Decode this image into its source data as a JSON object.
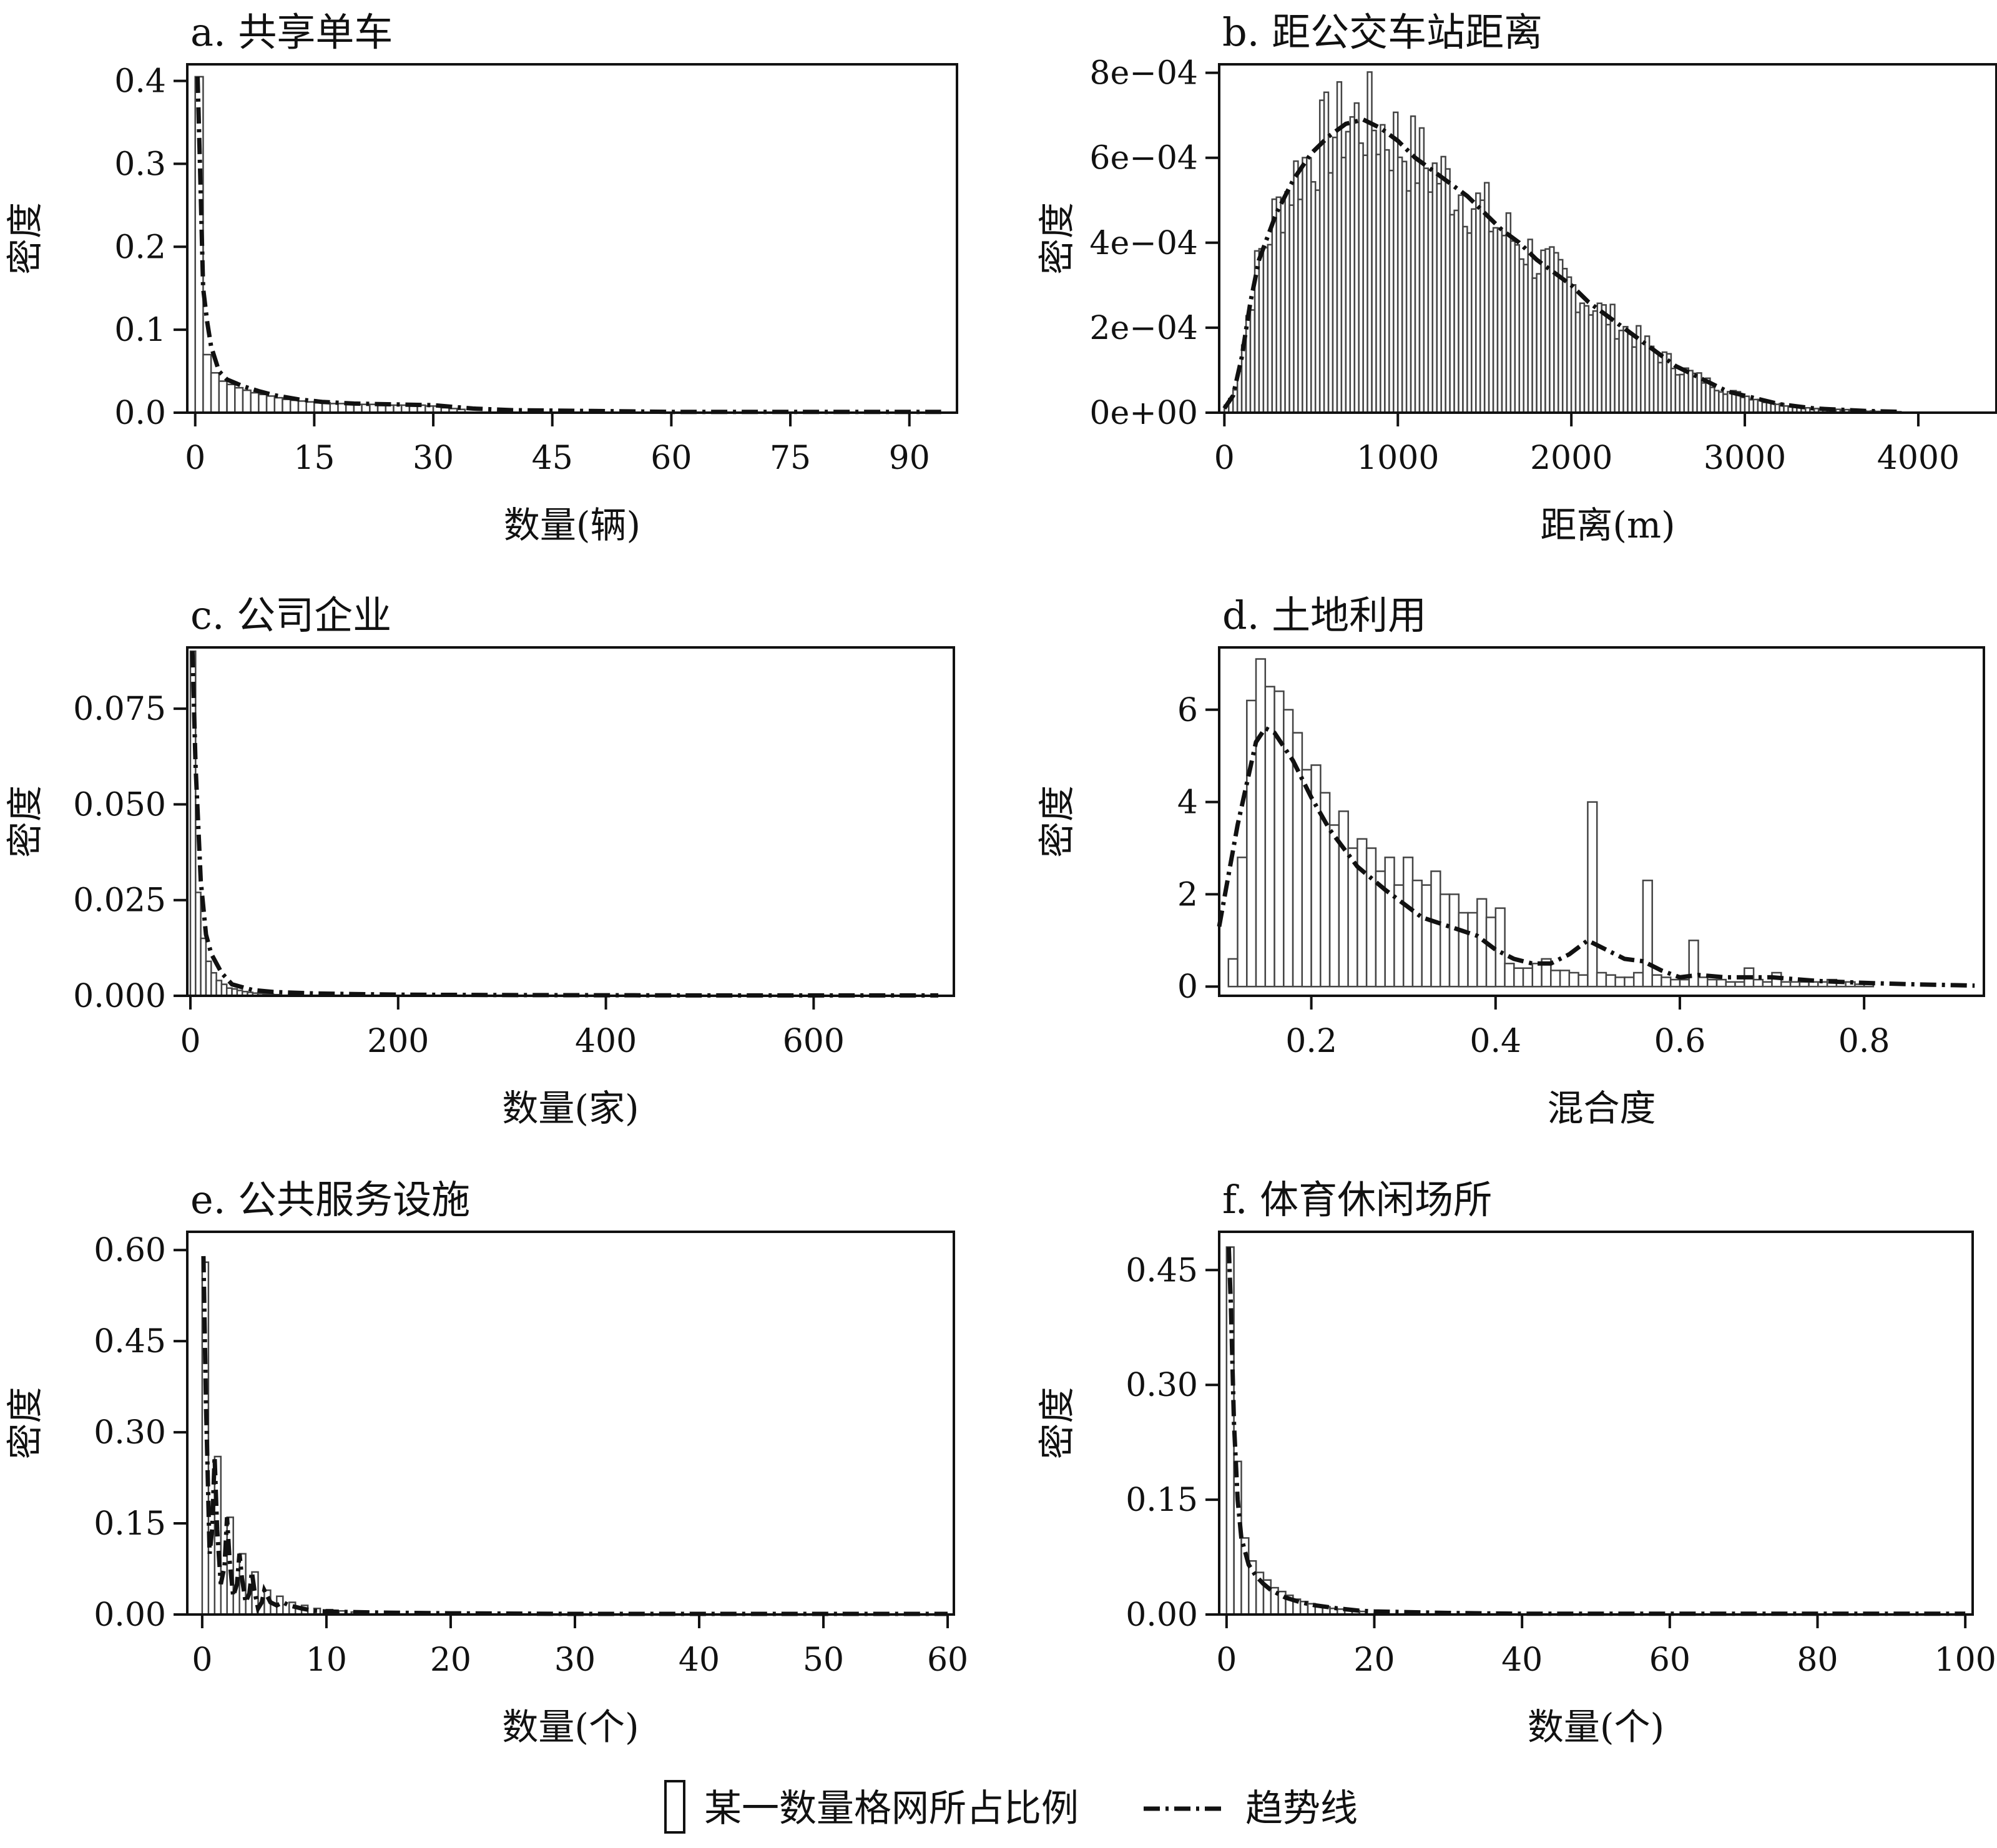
{
  "chart_data": [
    {
      "id": "a",
      "type": "bar",
      "title": "a. 共享单车",
      "xlabel": "数量(辆)",
      "ylabel": "密度",
      "xlim": [
        -1,
        96
      ],
      "ylim": [
        0,
        0.42
      ],
      "xticks": [
        0,
        15,
        30,
        45,
        60,
        75,
        90
      ],
      "xtick_labels": [
        "0",
        "15",
        "30",
        "45",
        "60",
        "75",
        "90"
      ],
      "yticks": [
        0,
        0.1,
        0.2,
        0.3,
        0.4
      ],
      "ytick_labels": [
        "0.0",
        "0.1",
        "0.2",
        "0.3",
        "0.4"
      ],
      "bin_width": 1,
      "bins_x": [
        0,
        1,
        2,
        3,
        4,
        5,
        6,
        7,
        8,
        9,
        10,
        11,
        12,
        13,
        14,
        15,
        16,
        17,
        18,
        19,
        20,
        21,
        22,
        23,
        24,
        25,
        26,
        27,
        28,
        29,
        30,
        31,
        32,
        33
      ],
      "bins_y": [
        0.405,
        0.07,
        0.048,
        0.038,
        0.034,
        0.03,
        0.027,
        0.024,
        0.022,
        0.02,
        0.018,
        0.016,
        0.015,
        0.014,
        0.013,
        0.012,
        0.012,
        0.011,
        0.011,
        0.01,
        0.01,
        0.01,
        0.01,
        0.009,
        0.009,
        0.009,
        0.009,
        0.009,
        0.009,
        0.008,
        0.008,
        0.006,
        0.005,
        0.004
      ],
      "trend_x": [
        0.3,
        0.6,
        1,
        1.5,
        2,
        3,
        4,
        6,
        8,
        10,
        13,
        16,
        20,
        25,
        30,
        35,
        40,
        50,
        60,
        70,
        80,
        90,
        94
      ],
      "trend_y": [
        0.405,
        0.3,
        0.15,
        0.11,
        0.08,
        0.05,
        0.04,
        0.032,
        0.026,
        0.021,
        0.016,
        0.013,
        0.011,
        0.01,
        0.009,
        0.005,
        0.003,
        0.002,
        0.001,
        0.001,
        0.001,
        0.001,
        0.001
      ]
    },
    {
      "id": "b",
      "type": "bar",
      "title": "b. 距公交车站距离",
      "xlabel": "距离(m)",
      "ylabel": "密度",
      "xlim": [
        -30,
        4450
      ],
      "ylim": [
        0,
        0.00082
      ],
      "xticks": [
        0,
        1000,
        2000,
        3000,
        4000
      ],
      "xtick_labels": [
        "0",
        "1000",
        "2000",
        "3000",
        "4000"
      ],
      "yticks": [
        0,
        0.0002,
        0.0004,
        0.0006,
        0.0008
      ],
      "ytick_labels": [
        "0e+00",
        "2e−04",
        "4e−04",
        "6e−04",
        "8e−04"
      ],
      "bin_width": 25,
      "curve_peak_x": 800,
      "curve_peak_y": 0.00069,
      "curve_max_x": 3900,
      "trend_x": [
        0,
        50,
        100,
        150,
        200,
        300,
        400,
        500,
        600,
        700,
        800,
        900,
        1000,
        1100,
        1200,
        1300,
        1400,
        1500,
        1600,
        1700,
        1800,
        1900,
        2000,
        2100,
        2200,
        2300,
        2400,
        2500,
        2600,
        2700,
        2800,
        2900,
        3000,
        3100,
        3200,
        3300,
        3400,
        3500,
        3600,
        3700,
        3800,
        3900
      ],
      "trend_y": [
        1e-05,
        4e-05,
        0.00013,
        0.00026,
        0.00036,
        0.00047,
        0.00055,
        0.00061,
        0.00065,
        0.00068,
        0.00069,
        0.00067,
        0.00064,
        0.0006,
        0.00057,
        0.00054,
        0.00051,
        0.00047,
        0.00043,
        0.0004,
        0.00036,
        0.00033,
        0.0003,
        0.00026,
        0.00023,
        0.0002,
        0.00017,
        0.00014,
        0.00011,
        9e-05,
        7e-05,
        5e-05,
        4e-05,
        3e-05,
        2e-05,
        1.5e-05,
        1e-05,
        8e-06,
        6e-06,
        4e-06,
        3e-06,
        2e-06
      ]
    },
    {
      "id": "c",
      "type": "bar",
      "title": "c. 公司企业",
      "xlabel": "数量(家)",
      "ylabel": "密度",
      "xlim": [
        -3,
        735
      ],
      "ylim": [
        0,
        0.091
      ],
      "xticks": [
        0,
        200,
        400,
        600
      ],
      "xtick_labels": [
        "0",
        "200",
        "400",
        "600"
      ],
      "yticks": [
        0,
        0.025,
        0.05,
        0.075
      ],
      "ytick_labels": [
        "0.000",
        "0.025",
        "0.050",
        "0.075"
      ],
      "bin_width": 5,
      "bins_x": [
        0,
        5,
        10,
        15,
        20,
        25,
        30,
        35,
        40,
        45,
        50,
        55,
        60,
        65,
        70,
        75,
        80
      ],
      "bins_y": [
        0.09,
        0.027,
        0.015,
        0.009,
        0.006,
        0.004,
        0.003,
        0.002,
        0.0018,
        0.0014,
        0.0011,
        0.0009,
        0.0007,
        0.0006,
        0.0005,
        0.0004,
        0.0003
      ],
      "trend_x": [
        2,
        5,
        10,
        15,
        20,
        30,
        40,
        60,
        80,
        120,
        200,
        300,
        400,
        500,
        600,
        720
      ],
      "trend_y": [
        0.09,
        0.06,
        0.03,
        0.016,
        0.011,
        0.006,
        0.003,
        0.0015,
        0.001,
        0.0006,
        0.0003,
        0.0002,
        0.00015,
        0.0001,
        0.0001,
        0.0001
      ]
    },
    {
      "id": "d",
      "type": "bar",
      "title": "d. 土地利用",
      "xlabel": "混合度",
      "ylabel": "密度",
      "xlim": [
        0.1,
        0.93
      ],
      "ylim": [
        -0.2,
        7.35
      ],
      "xticks": [
        0.2,
        0.4,
        0.6,
        0.8
      ],
      "xtick_labels": [
        "0.2",
        "0.4",
        "0.6",
        "0.8"
      ],
      "yticks": [
        0,
        2,
        4,
        6
      ],
      "ytick_labels": [
        "0",
        "2",
        "4",
        "6"
      ],
      "bin_width": 0.01,
      "bins_x": [
        0.11,
        0.12,
        0.13,
        0.14,
        0.15,
        0.16,
        0.17,
        0.18,
        0.19,
        0.2,
        0.21,
        0.22,
        0.23,
        0.24,
        0.25,
        0.26,
        0.27,
        0.28,
        0.29,
        0.3,
        0.31,
        0.32,
        0.33,
        0.34,
        0.35,
        0.36,
        0.37,
        0.38,
        0.39,
        0.4,
        0.41,
        0.42,
        0.43,
        0.44,
        0.45,
        0.46,
        0.47,
        0.48,
        0.49,
        0.5,
        0.51,
        0.52,
        0.53,
        0.54,
        0.55,
        0.56,
        0.57,
        0.58,
        0.59,
        0.6,
        0.61,
        0.62,
        0.63,
        0.64,
        0.65,
        0.66,
        0.67,
        0.68,
        0.69,
        0.7,
        0.71,
        0.72,
        0.73,
        0.74,
        0.75,
        0.76,
        0.77,
        0.78,
        0.79,
        0.8
      ],
      "bins_y": [
        0.6,
        2.8,
        6.2,
        7.1,
        6.5,
        6.4,
        6.0,
        5.5,
        4.7,
        4.8,
        4.2,
        3.5,
        3.8,
        3.0,
        3.2,
        3.0,
        2.5,
        2.8,
        2.2,
        2.8,
        2.3,
        2.2,
        2.5,
        2.0,
        2.0,
        1.6,
        1.6,
        1.9,
        1.5,
        1.7,
        0.5,
        0.4,
        0.4,
        0.5,
        0.6,
        0.35,
        0.35,
        0.3,
        0.25,
        4.0,
        0.3,
        0.25,
        0.2,
        0.2,
        0.3,
        2.3,
        0.25,
        0.2,
        0.15,
        0.15,
        1.0,
        0.2,
        0.15,
        0.15,
        0.1,
        0.1,
        0.4,
        0.15,
        0.1,
        0.3,
        0.1,
        0.1,
        0.1,
        0.1,
        0.1,
        0.15,
        0.1,
        0.1,
        0.05,
        0.05
      ],
      "trend_x": [
        0.1,
        0.12,
        0.14,
        0.15,
        0.16,
        0.18,
        0.2,
        0.22,
        0.25,
        0.28,
        0.3,
        0.32,
        0.35,
        0.38,
        0.4,
        0.42,
        0.44,
        0.46,
        0.48,
        0.5,
        0.52,
        0.54,
        0.56,
        0.58,
        0.6,
        0.62,
        0.65,
        0.7,
        0.75,
        0.8,
        0.85,
        0.9,
        0.92
      ],
      "trend_y": [
        1.3,
        3.5,
        5.3,
        5.6,
        5.5,
        4.9,
        4.1,
        3.4,
        2.6,
        2.1,
        1.8,
        1.5,
        1.3,
        1.1,
        0.8,
        0.6,
        0.5,
        0.5,
        0.7,
        1.0,
        0.8,
        0.6,
        0.55,
        0.35,
        0.2,
        0.25,
        0.2,
        0.2,
        0.12,
        0.08,
        0.05,
        0.03,
        0.02
      ]
    },
    {
      "id": "e",
      "type": "bar",
      "title": "e. 公共服务设施",
      "xlabel": "数量(个)",
      "ylabel": "密度",
      "xlim": [
        -1.2,
        60.5
      ],
      "ylim": [
        0,
        0.63
      ],
      "xticks": [
        0,
        10,
        20,
        30,
        40,
        50,
        60
      ],
      "xtick_labels": [
        "0",
        "10",
        "20",
        "30",
        "40",
        "50",
        "60"
      ],
      "yticks": [
        0,
        0.15,
        0.3,
        0.45,
        0.6
      ],
      "ytick_labels": [
        "0.00",
        "0.15",
        "0.30",
        "0.45",
        "0.60"
      ],
      "bin_width": 0.5,
      "bins_x": [
        0,
        0.5,
        1,
        1.5,
        2,
        2.5,
        3,
        3.5,
        4,
        4.5,
        5,
        5.5,
        6,
        6.5,
        7,
        7.5,
        8,
        8.5,
        9,
        9.5,
        10,
        10.5,
        11,
        11.5,
        12
      ],
      "bins_y": [
        0.58,
        0.0,
        0.26,
        0.0,
        0.16,
        0.0,
        0.1,
        0.0,
        0.07,
        0.0,
        0.04,
        0.0,
        0.03,
        0.0,
        0.02,
        0.0,
        0.015,
        0.0,
        0.01,
        0.0,
        0.008,
        0.0,
        0.006,
        0.0,
        0.004
      ],
      "trend_x": [
        0.1,
        0.3,
        0.6,
        0.8,
        1,
        1.2,
        1.5,
        1.8,
        2,
        2.2,
        2.5,
        2.8,
        3,
        3.2,
        3.5,
        3.8,
        4,
        4.2,
        4.5,
        4.8,
        5,
        5.5,
        6,
        6.5,
        7,
        8,
        9,
        10,
        12,
        15,
        20,
        30,
        40,
        50,
        60
      ],
      "trend_y": [
        0.59,
        0.35,
        0.1,
        0.14,
        0.26,
        0.14,
        0.05,
        0.08,
        0.16,
        0.09,
        0.03,
        0.05,
        0.1,
        0.06,
        0.02,
        0.035,
        0.07,
        0.04,
        0.01,
        0.02,
        0.04,
        0.02,
        0.015,
        0.02,
        0.015,
        0.01,
        0.006,
        0.005,
        0.004,
        0.003,
        0.002,
        0.001,
        0.001,
        0.001,
        0.001
      ]
    },
    {
      "id": "f",
      "type": "bar",
      "title": "f. 体育休闲场所",
      "xlabel": "数量(个)",
      "ylabel": "密度",
      "xlim": [
        -1,
        101
      ],
      "ylim": [
        0,
        0.5
      ],
      "xticks": [
        0,
        20,
        40,
        60,
        80,
        100
      ],
      "xtick_labels": [
        "0",
        "20",
        "40",
        "60",
        "80",
        "100"
      ],
      "yticks": [
        0,
        0.15,
        0.3,
        0.45
      ],
      "ytick_labels": [
        "0.00",
        "0.15",
        "0.30",
        "0.45"
      ],
      "bin_width": 1,
      "bins_x": [
        0,
        1,
        2,
        3,
        4,
        5,
        6,
        7,
        8,
        9,
        10,
        11,
        12,
        13,
        14,
        15,
        16,
        17,
        18
      ],
      "bins_y": [
        0.48,
        0.2,
        0.1,
        0.07,
        0.055,
        0.045,
        0.035,
        0.03,
        0.025,
        0.02,
        0.017,
        0.014,
        0.012,
        0.01,
        0.008,
        0.007,
        0.006,
        0.005,
        0.004
      ],
      "trend_x": [
        0.3,
        0.6,
        1,
        1.5,
        2,
        3,
        4,
        5,
        6,
        8,
        10,
        12,
        15,
        18,
        20,
        30,
        40,
        60,
        80,
        100
      ],
      "trend_y": [
        0.48,
        0.4,
        0.25,
        0.15,
        0.1,
        0.065,
        0.05,
        0.04,
        0.032,
        0.022,
        0.016,
        0.012,
        0.008,
        0.005,
        0.004,
        0.002,
        0.001,
        0.001,
        0.001,
        0.001
      ]
    }
  ],
  "legend": {
    "bar_label": "某一数量格网所占比例",
    "line_label": "趋势线"
  }
}
